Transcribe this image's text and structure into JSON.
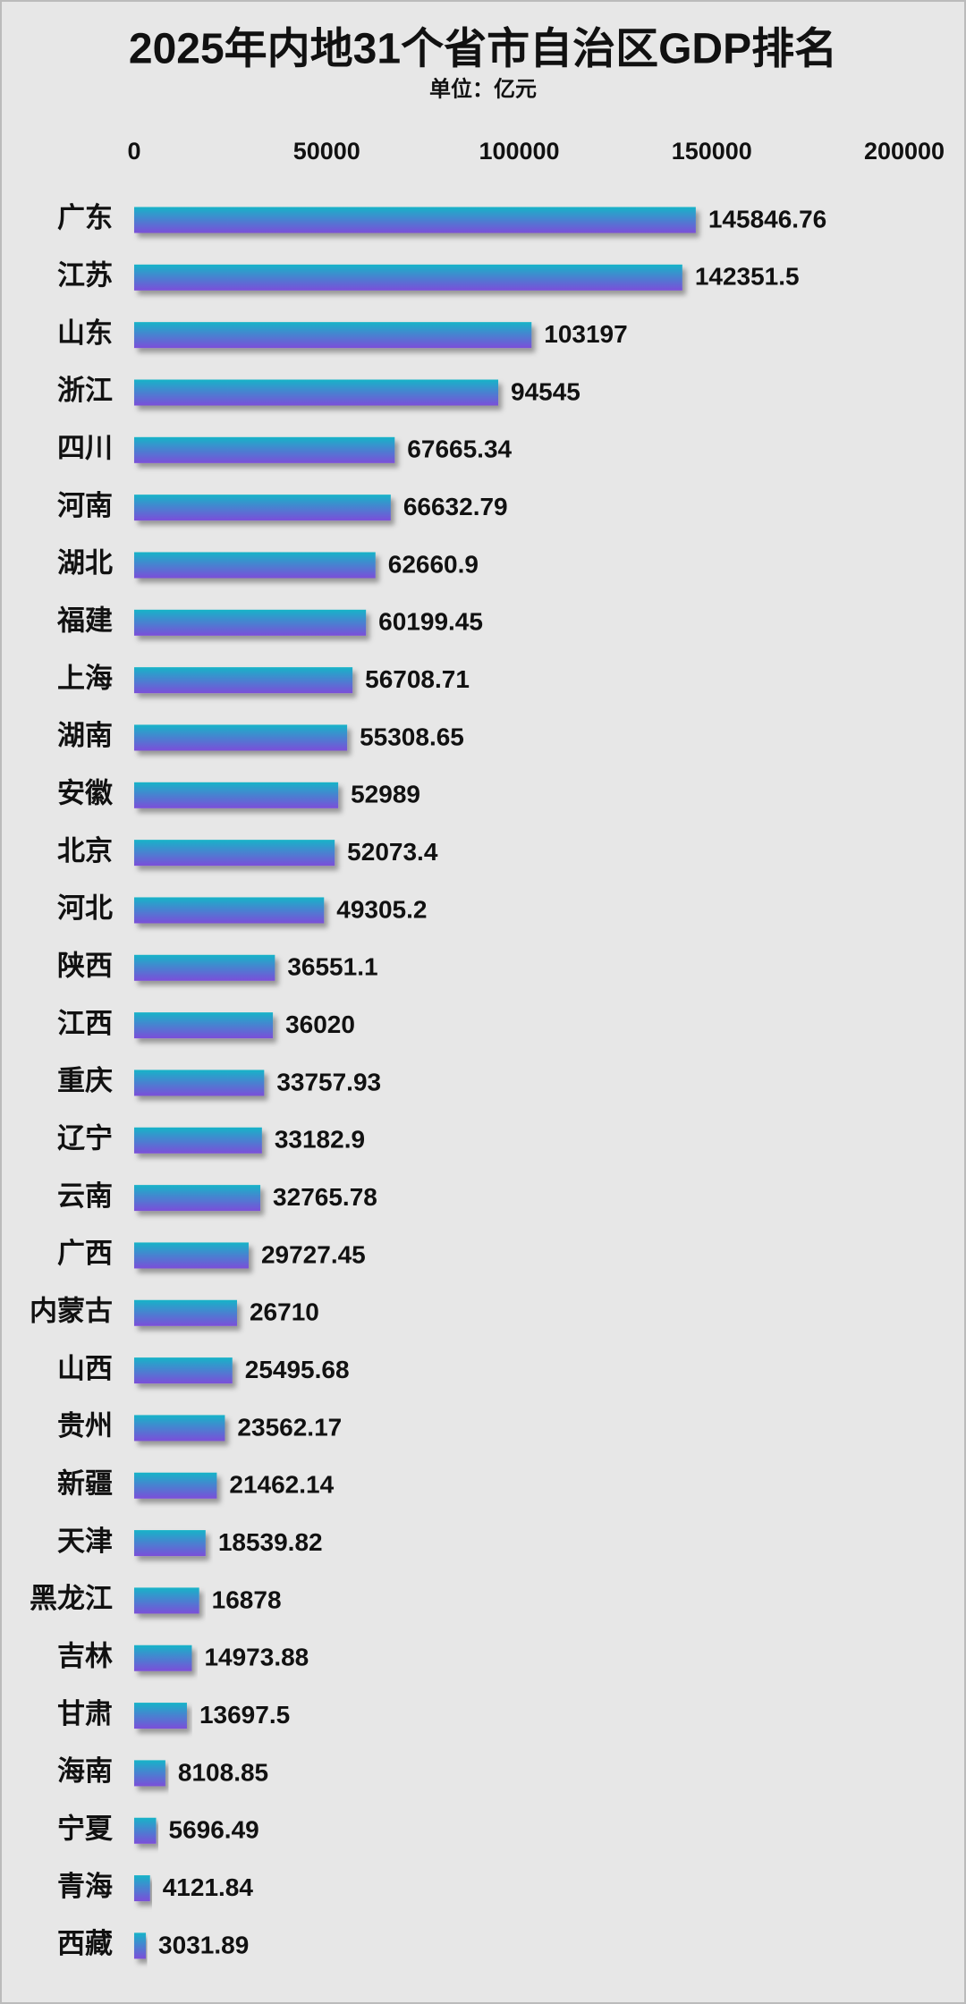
{
  "chart_data": {
    "type": "bar",
    "orientation": "horizontal",
    "title": "2025年内地31个省市自治区GDP排名",
    "subtitle": "单位：亿元",
    "categories": [
      "广东",
      "江苏",
      "山东",
      "浙江",
      "四川",
      "河南",
      "湖北",
      "福建",
      "上海",
      "湖南",
      "安徽",
      "北京",
      "河北",
      "陕西",
      "江西",
      "重庆",
      "辽宁",
      "云南",
      "广西",
      "内蒙古",
      "山西",
      "贵州",
      "新疆",
      "天津",
      "黑龙江",
      "吉林",
      "甘肃",
      "海南",
      "宁夏",
      "青海",
      "西藏"
    ],
    "values": [
      145846.76,
      142351.5,
      103197,
      94545,
      67665.34,
      66632.79,
      62660.9,
      60199.45,
      56708.71,
      55308.65,
      52989,
      52073.4,
      49305.2,
      36551.1,
      36020,
      33757.93,
      33182.9,
      32765.78,
      29727.45,
      26710,
      25495.68,
      23562.17,
      21462.14,
      18539.82,
      16878,
      14973.88,
      13697.5,
      8108.85,
      5696.49,
      4121.84,
      3031.89
    ],
    "gradient": [
      "#17b4c8",
      "#7b4ed9"
    ],
    "xlim": [
      0,
      200000
    ],
    "xticks": [
      0,
      50000,
      100000,
      150000,
      200000
    ],
    "grid": false
  }
}
